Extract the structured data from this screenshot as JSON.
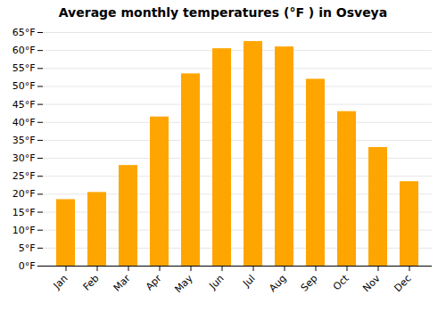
{
  "chart_data": {
    "type": "bar",
    "title": "Average monthly temperatures (°F ) in Osveya",
    "categories": [
      "Jan",
      "Feb",
      "Mar",
      "Apr",
      "May",
      "Jun",
      "Jul",
      "Aug",
      "Sep",
      "Oct",
      "Nov",
      "Dec"
    ],
    "values": [
      18.5,
      20.5,
      28.0,
      41.5,
      53.5,
      60.5,
      62.5,
      61.0,
      52.0,
      43.0,
      33.0,
      23.5
    ],
    "color": "#FFA500",
    "ylim": [
      0,
      65
    ],
    "yticks": [
      {
        "value": 0,
        "label": "0°F"
      },
      {
        "value": 5,
        "label": "5°F"
      },
      {
        "value": 10,
        "label": "10°F"
      },
      {
        "value": 15,
        "label": "15°F"
      },
      {
        "value": 20,
        "label": "20°F"
      },
      {
        "value": 25,
        "label": "25°F"
      },
      {
        "value": 30,
        "label": "30°F"
      },
      {
        "value": 35,
        "label": "35°F"
      },
      {
        "value": 40,
        "label": "40°F"
      },
      {
        "value": 45,
        "label": "45°F"
      },
      {
        "value": 50,
        "label": "50°F"
      },
      {
        "value": 55,
        "label": "55°F"
      },
      {
        "value": 60,
        "label": "60°F"
      },
      {
        "value": 65,
        "label": "65°F"
      }
    ],
    "grid": true
  }
}
